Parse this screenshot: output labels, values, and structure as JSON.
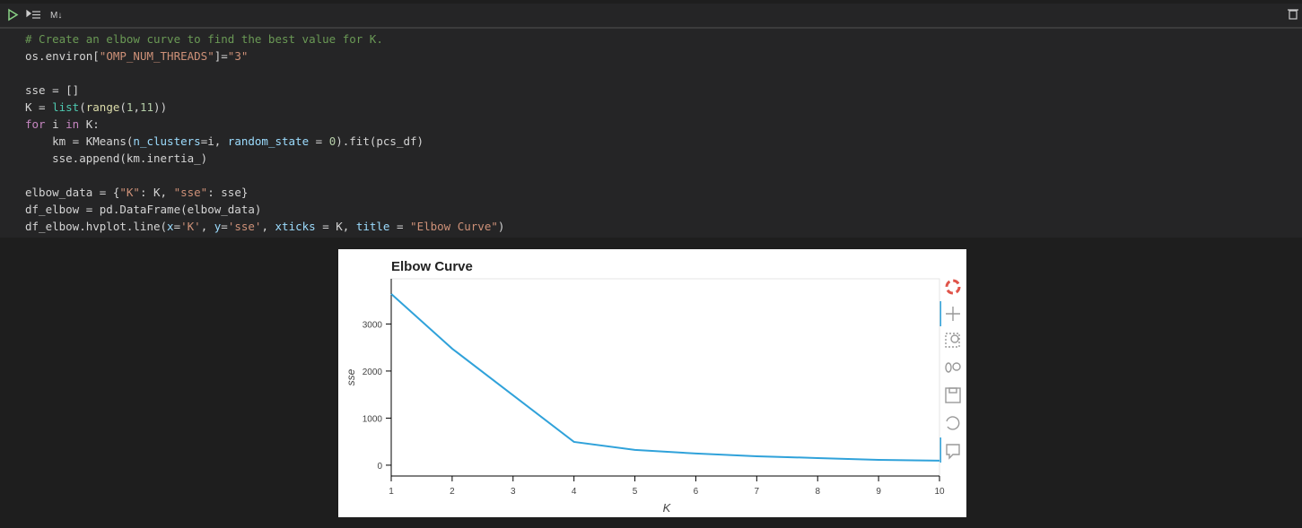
{
  "toolbar": {
    "markdown_label": "M↓"
  },
  "code": {
    "blocks": [
      [
        [
          [
            "# Create an elbow curve to find the best value for K.",
            "#6a9955"
          ]
        ],
        [
          [
            "os.environ[",
            "#d4d4d4"
          ],
          [
            "\"OMP_NUM_THREADS\"",
            "#ce9178"
          ],
          [
            "]=",
            "#d4d4d4"
          ],
          [
            "\"3\"",
            "#ce9178"
          ]
        ]
      ],
      [
        [
          [
            "sse = []",
            "#d4d4d4"
          ]
        ],
        [
          [
            "K = ",
            "#d4d4d4"
          ],
          [
            "list",
            "#4ec9b0"
          ],
          [
            "(",
            "#d4d4d4"
          ],
          [
            "range",
            "#dcdcaa"
          ],
          [
            "(",
            "#d4d4d4"
          ],
          [
            "1",
            "#b5cea8"
          ],
          [
            ",",
            "#d4d4d4"
          ],
          [
            "11",
            "#b5cea8"
          ],
          [
            "))",
            "#d4d4d4"
          ]
        ],
        [
          [
            "for",
            "#c586c0"
          ],
          [
            " i ",
            "#d4d4d4"
          ],
          [
            "in",
            "#c586c0"
          ],
          [
            " K:",
            "#d4d4d4"
          ]
        ],
        [
          [
            "    km = KMeans(",
            "#d4d4d4"
          ],
          [
            "n_clusters",
            "#9cdcfe"
          ],
          [
            "=i, ",
            "#d4d4d4"
          ],
          [
            "random_state",
            "#9cdcfe"
          ],
          [
            " = ",
            "#d4d4d4"
          ],
          [
            "0",
            "#b5cea8"
          ],
          [
            ").fit(pcs_df)",
            "#d4d4d4"
          ]
        ],
        [
          [
            "    sse.append(km.inertia_)",
            "#d4d4d4"
          ]
        ]
      ],
      [
        [
          [
            "elbow_data = {",
            "#d4d4d4"
          ],
          [
            "\"K\"",
            "#ce9178"
          ],
          [
            ": K, ",
            "#d4d4d4"
          ],
          [
            "\"sse\"",
            "#ce9178"
          ],
          [
            ": sse}",
            "#d4d4d4"
          ]
        ],
        [
          [
            "df_elbow = pd.DataFrame(elbow_data)",
            "#d4d4d4"
          ]
        ],
        [
          [
            "df_elbow.hvplot.line(",
            "#d4d4d4"
          ],
          [
            "x",
            "#9cdcfe"
          ],
          [
            "=",
            "#d4d4d4"
          ],
          [
            "'K'",
            "#ce9178"
          ],
          [
            ", ",
            "#d4d4d4"
          ],
          [
            "y",
            "#9cdcfe"
          ],
          [
            "=",
            "#d4d4d4"
          ],
          [
            "'sse'",
            "#ce9178"
          ],
          [
            ", ",
            "#d4d4d4"
          ],
          [
            "xticks",
            "#9cdcfe"
          ],
          [
            " = K, ",
            "#d4d4d4"
          ],
          [
            "title",
            "#9cdcfe"
          ],
          [
            " = ",
            "#d4d4d4"
          ],
          [
            "\"Elbow Curve\"",
            "#ce9178"
          ],
          [
            ")",
            "#d4d4d4"
          ]
        ]
      ]
    ]
  },
  "chart_data": {
    "type": "line",
    "title": "Elbow Curve",
    "x_label": "K",
    "y_label": "sse",
    "x": [
      1,
      2,
      3,
      4,
      5,
      6,
      7,
      8,
      9,
      10
    ],
    "series": [
      {
        "name": "sse",
        "color": "#30a2da",
        "values": [
          3638,
          2476,
          1486,
          495,
          324,
          248,
          190,
          152,
          114,
          95
        ]
      }
    ],
    "xlim": [
      1,
      10
    ],
    "xticks": [
      1,
      2,
      3,
      4,
      5,
      6,
      7,
      8,
      9,
      10
    ],
    "ylim": [
      -230,
      3960
    ],
    "yticks": [
      0,
      1000,
      2000,
      3000
    ]
  }
}
